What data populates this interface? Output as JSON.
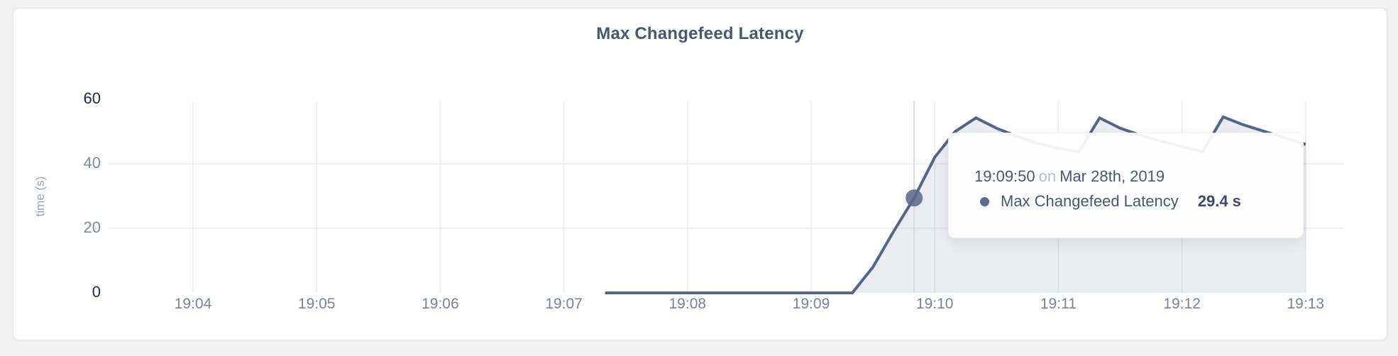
{
  "page": {
    "background_color": "#f1f1f2",
    "card_color": "#ffffff"
  },
  "tooltip": {
    "time": "19:09:50",
    "preposition": "on",
    "date": "Mar 28th, 2019",
    "series_label": "Max Changefeed Latency",
    "value": "29.4 s",
    "bullet_icon": "filled-circle"
  },
  "chart_data": {
    "type": "area",
    "title": "Max Changefeed Latency",
    "xlabel": "",
    "ylabel": "time (s)",
    "ylim": [
      0,
      60
    ],
    "y_ticks": [
      0,
      20,
      40,
      60
    ],
    "x_ticks": [
      "19:04",
      "19:05",
      "19:06",
      "19:07",
      "19:08",
      "19:09",
      "19:10",
      "19:11",
      "19:12",
      "19:13"
    ],
    "grid": true,
    "legend_position": "none",
    "series": [
      {
        "name": "Max Changefeed Latency",
        "unit": "s",
        "points": [
          [
            "19:07:20",
            0
          ],
          [
            "19:09:20",
            0
          ],
          [
            "19:09:30",
            8
          ],
          [
            "19:09:40",
            19
          ],
          [
            "19:09:50",
            29.4
          ],
          [
            "19:10:00",
            42
          ],
          [
            "19:10:10",
            50
          ],
          [
            "19:10:20",
            54.2
          ],
          [
            "19:10:30",
            51
          ],
          [
            "19:10:40",
            48.5
          ],
          [
            "19:10:50",
            46.3
          ],
          [
            "19:11:00",
            44.8
          ],
          [
            "19:11:10",
            43.7
          ],
          [
            "19:11:20",
            54.2
          ],
          [
            "19:11:30",
            51
          ],
          [
            "19:11:40",
            48.8
          ],
          [
            "19:11:50",
            47
          ],
          [
            "19:12:00",
            45.3
          ],
          [
            "19:12:10",
            43.7
          ],
          [
            "19:12:20",
            54.5
          ],
          [
            "19:12:30",
            52
          ],
          [
            "19:12:40",
            50
          ],
          [
            "19:12:50",
            48
          ],
          [
            "19:13:00",
            46
          ]
        ]
      }
    ],
    "hover": {
      "time": "19:09:50",
      "value": 29.4
    },
    "colors": {
      "line": "#54658c",
      "fill": "rgba(84,101,140,0.12)",
      "dot": "#5a6b8f",
      "crosshair": "#d8d9dd",
      "grid": "#ececee",
      "title_text": "#475872",
      "axis_strong_text": "#1b2a4e",
      "axis_text": "#7f89a1"
    }
  }
}
